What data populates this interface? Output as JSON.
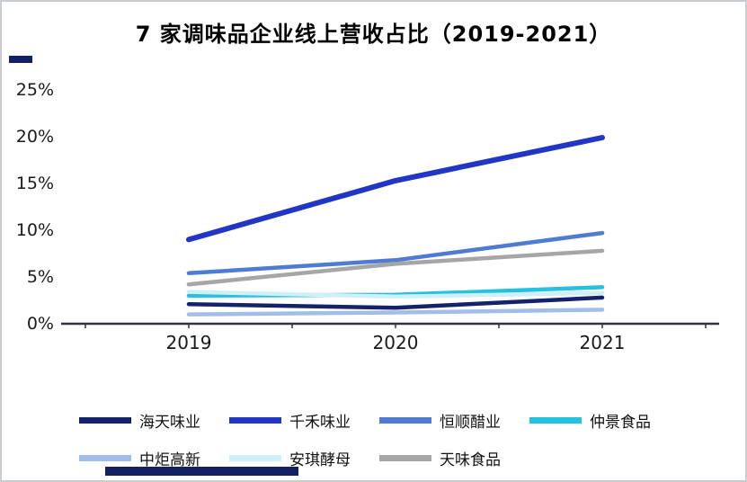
{
  "page": {
    "title": "7 家调味品企业线上营收占比（2019-2021）"
  },
  "chart_data": {
    "type": "line",
    "title": "7 家调味品企业线上营收占比（2019-2021）",
    "x_labels": [
      "2019",
      "2020",
      "2021"
    ],
    "xlabel": "",
    "ylabel": "",
    "ylim": [
      0,
      25
    ],
    "ytick_step": 5,
    "ytick_labels": [
      "0%",
      "5%",
      "10%",
      "15%",
      "20%",
      "25%"
    ],
    "grid": false,
    "legend_position": "bottom",
    "series": [
      {
        "name": "海天味业",
        "color": "#14216b",
        "values": [
          2.1,
          1.7,
          2.8
        ]
      },
      {
        "name": "千禾味业",
        "color": "#2136c4",
        "values": [
          9.0,
          15.3,
          19.9
        ]
      },
      {
        "name": "恒顺醋业",
        "color": "#4e7cd2",
        "values": [
          5.4,
          6.8,
          9.7
        ]
      },
      {
        "name": "仲景食品",
        "color": "#25c1e1",
        "values": [
          3.0,
          3.1,
          3.9
        ]
      },
      {
        "name": "中炬高新",
        "color": "#a2bde8",
        "values": [
          1.0,
          1.2,
          1.5
        ]
      },
      {
        "name": "安琪酵母",
        "color": "#cfeff9",
        "values": [
          3.4,
          2.9,
          3.3
        ]
      },
      {
        "name": "天味食品",
        "color": "#a6a6a6",
        "values": [
          4.2,
          6.4,
          7.8
        ]
      }
    ],
    "colors": {
      "axis": "#33333d",
      "tick_text": "#1a1a1a",
      "decor_bar": "#131f63"
    }
  }
}
